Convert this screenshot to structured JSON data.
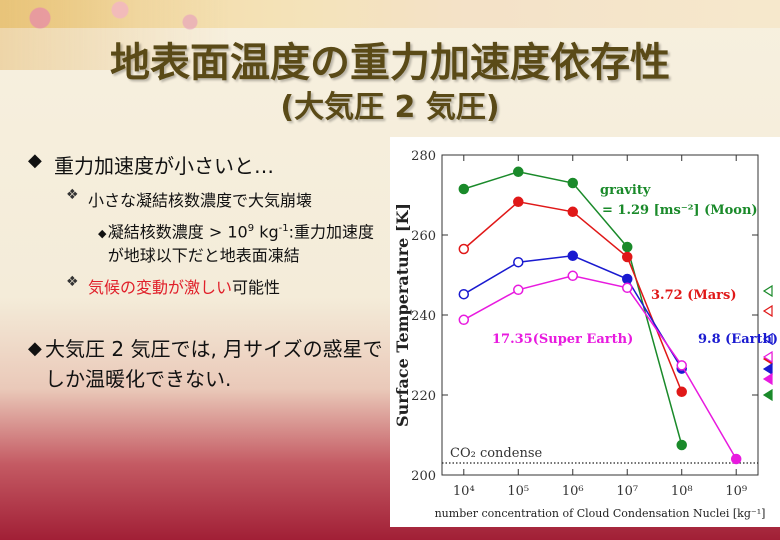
{
  "slide": {
    "title": "地表面温度の重力加速度依存性",
    "subtitle": "(大気圧 2 気圧)"
  },
  "bullets": {
    "l1_text": "重力加速度が小さいと…",
    "l2_text": "小さな凝結核数濃度で大気崩壊",
    "l3_text_a": "凝結核数濃度 > 10",
    "l3_sup": "9",
    "l3_text_b": " kg",
    "l3_sup2": "-1",
    "l3_text_c": ":重力加速度が地球以下だと地表面凍結",
    "l4_red": "気候の変動が激しい",
    "l4_black": "可能性",
    "l5_text": "大気圧 2 気圧では, 月サイズの惑星でしか温暖化できない."
  },
  "chart_data": {
    "type": "line",
    "xlabel": "number concentration of Cloud Condensation Nuclei [kg⁻¹]",
    "ylabel": "Surface Temperature [K]",
    "x_scale": "log",
    "x_ticks": [
      "10⁴",
      "10⁵",
      "10⁶",
      "10⁷",
      "10⁸",
      "10⁹"
    ],
    "x_values": [
      4,
      5,
      6,
      7,
      8,
      9
    ],
    "ylim": [
      200,
      280
    ],
    "y_ticks": [
      200,
      220,
      240,
      260,
      280
    ],
    "co2_line": {
      "y": 203,
      "label": "CO₂ condense"
    },
    "legend_title": "gravity",
    "series": [
      {
        "name": "1.29 [ms⁻²] (Moon)",
        "label_prefix": "= ",
        "color": "#1a8a2a",
        "x": [
          4,
          5,
          6,
          7,
          8
        ],
        "y": [
          271.5,
          275.8,
          273.0,
          257.0,
          207.5
        ],
        "filled": [
          true,
          true,
          true,
          true,
          true
        ],
        "right_marker": {
          "y": 220,
          "filled": true
        },
        "right_marker_open": {
          "y": 246
        }
      },
      {
        "name": "3.72 (Mars)",
        "label_prefix": "",
        "color": "#e01818",
        "x": [
          4,
          5,
          6,
          7,
          8
        ],
        "y": [
          256.5,
          268.3,
          265.8,
          254.5,
          220.8
        ],
        "filled": [
          false,
          true,
          true,
          true,
          true
        ],
        "right_marker": {
          "y": 229,
          "filled": true
        },
        "right_marker_open": {
          "y": 241
        }
      },
      {
        "name": "9.8 (Earth)",
        "label_prefix": "",
        "color": "#1a1ad0",
        "x": [
          4,
          5,
          6,
          7,
          8
        ],
        "y": [
          245.2,
          253.2,
          254.8,
          249.0,
          226.6
        ],
        "filled": [
          false,
          false,
          true,
          true,
          true
        ],
        "right_marker": {
          "y": 226.5,
          "filled": true
        },
        "right_marker_open": {
          "y": 234
        }
      },
      {
        "name": "17.35(Super Earth)",
        "label_prefix": "",
        "color": "#e81adf",
        "x": [
          4,
          5,
          6,
          7,
          8,
          9
        ],
        "y": [
          238.8,
          246.3,
          249.8,
          246.8,
          227.4,
          204.0
        ],
        "filled": [
          false,
          false,
          false,
          false,
          false,
          true
        ],
        "right_marker": {
          "y": 224,
          "filled": true
        },
        "right_marker_open": {
          "y": 229.5
        }
      }
    ]
  }
}
